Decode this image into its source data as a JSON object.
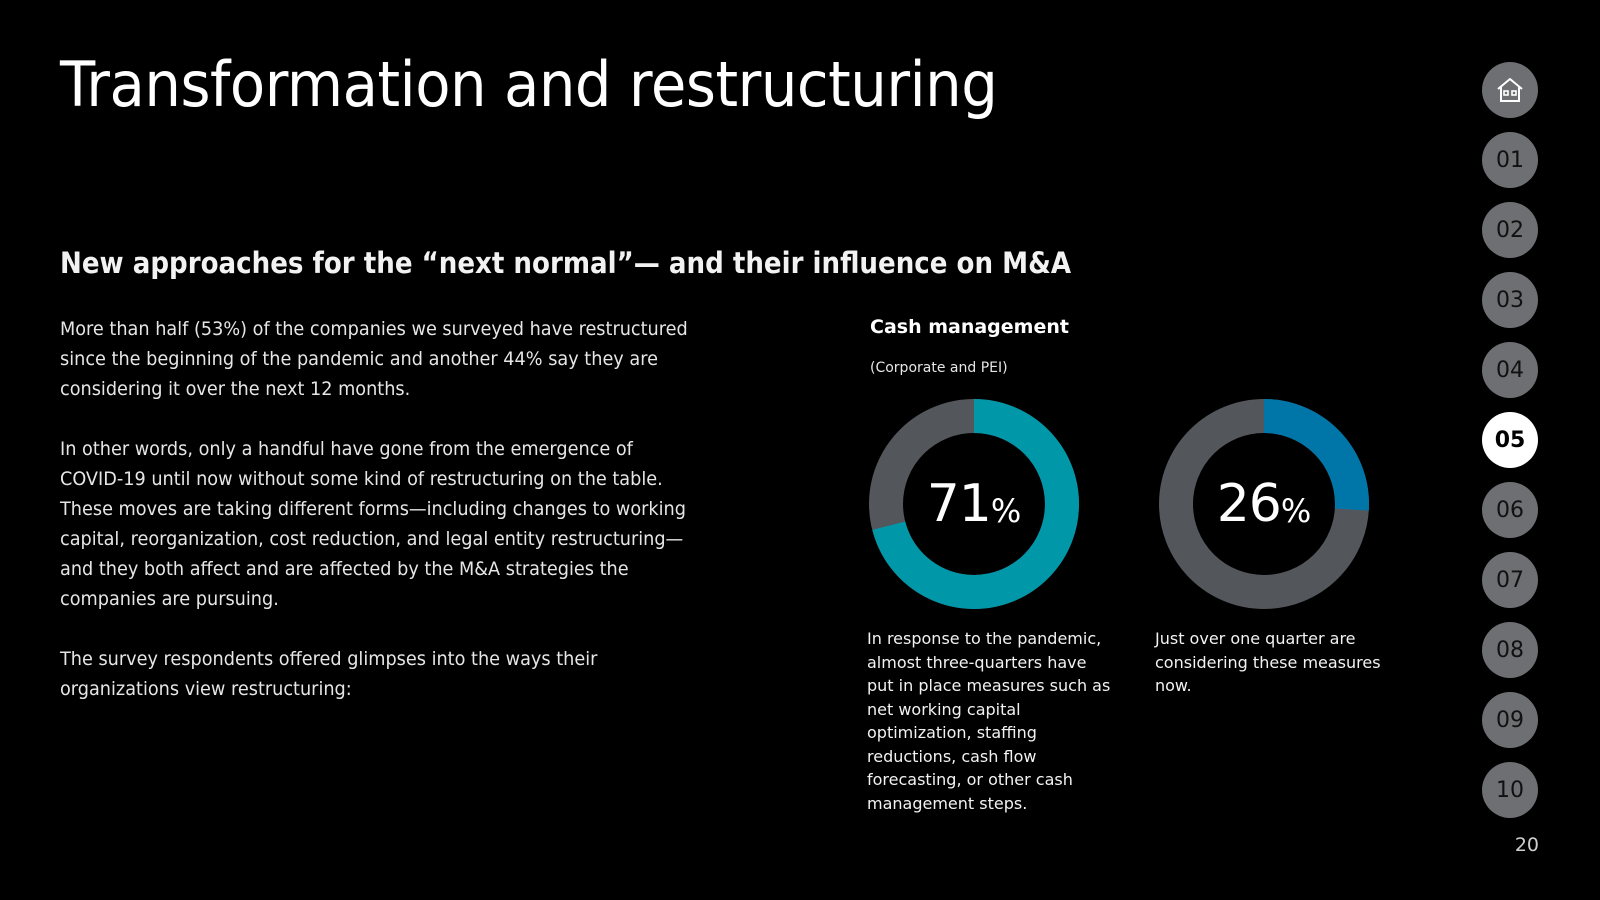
{
  "header": {
    "title": "Transformation and restructuring",
    "subtitle": "New approaches for the “next normal”— and their influence on M&A"
  },
  "body": {
    "paragraphs": [
      "More than half (53%) of the companies we surveyed have restructured since the beginning of the pandemic and another 44% say they are considering it over the next 12 months.",
      "In other words, only a handful have gone from the emergence of COVID-19 until now without some kind of restructuring on the table. These moves are taking different forms—including changes to working capital, reorganization, cost reduction, and legal entity restructuring—and they both affect and are affected by the M&A strategies the companies are pursuing.",
      "The survey respondents offered glimpses into the ways their organizations view restructuring:"
    ]
  },
  "cash": {
    "title": "Cash management",
    "subtitle": "(Corporate and PEI)",
    "donuts": [
      {
        "value": 71,
        "value_label": "71",
        "unit": "%",
        "color": "#0097a9",
        "track_color": "#53565a",
        "caption": "In response to the pandemic, almost three-quarters have put in place measures such as net working capital optimization, staffing reductions, cash flow forecasting, or other cash management steps."
      },
      {
        "value": 26,
        "value_label": "26",
        "unit": "%",
        "color": "#0076a8",
        "track_color": "#53565a",
        "caption": "Just over one quarter are considering these measures now."
      }
    ]
  },
  "nav": {
    "home_icon": "home-icon",
    "items": [
      "01",
      "02",
      "03",
      "04",
      "05",
      "06",
      "07",
      "08",
      "09",
      "10"
    ],
    "active": "05"
  },
  "page_number": "20"
}
